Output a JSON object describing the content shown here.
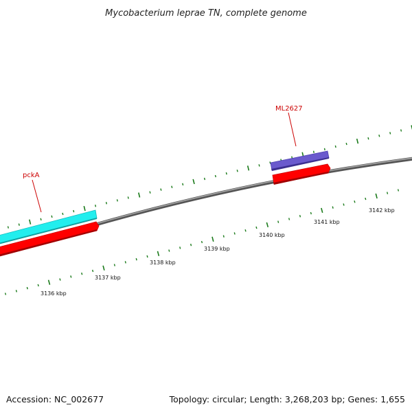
{
  "title": "Mycobacterium leprae TN, complete genome",
  "footer": {
    "accession": "Accession: NC_002677",
    "summary": "Topology: circular; Length: 3,268,203 bp; Genes: 1,655"
  },
  "genes": [
    {
      "name": "pckA",
      "label_color": "#cc0000"
    },
    {
      "name": "ML2627",
      "label_color": "#cc0000"
    }
  ],
  "scale": {
    "unit": "kbp",
    "labels": [
      "3136 kbp",
      "3137 kbp",
      "3138 kbp",
      "3139 kbp",
      "3140 kbp",
      "3141 kbp",
      "3142 kbp"
    ]
  },
  "colors": {
    "backbone": "#7f7f7f",
    "ticks": "#1a7a1a",
    "cds": "#ff0000",
    "gene_pckA": "#22eeee",
    "gene_ML2627": "#6a5acd",
    "label_line": "#cc0000"
  }
}
